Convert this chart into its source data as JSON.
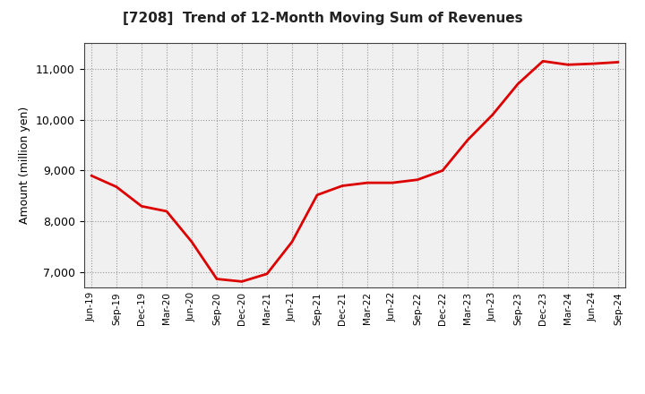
{
  "title": "[7208]  Trend of 12-Month Moving Sum of Revenues",
  "ylabel": "Amount (million yen)",
  "line_color": "#dd0000",
  "background_color": "#ffffff",
  "plot_bg_color": "#f0f0f0",
  "grid_color": "#999999",
  "ylim": [
    6700,
    11500
  ],
  "yticks": [
    7000,
    8000,
    9000,
    10000,
    11000
  ],
  "x_labels": [
    "Jun-19",
    "Sep-19",
    "Dec-19",
    "Mar-20",
    "Jun-20",
    "Sep-20",
    "Dec-20",
    "Mar-21",
    "Jun-21",
    "Sep-21",
    "Dec-21",
    "Mar-22",
    "Jun-22",
    "Sep-22",
    "Dec-22",
    "Mar-23",
    "Jun-23",
    "Sep-23",
    "Dec-23",
    "Mar-24",
    "Jun-24",
    "Sep-24"
  ],
  "values": [
    8900,
    8680,
    8300,
    8200,
    7600,
    6870,
    6820,
    6970,
    7600,
    8520,
    8700,
    8760,
    8760,
    8820,
    9000,
    9600,
    10100,
    10700,
    11150,
    11080,
    11100,
    11130
  ]
}
